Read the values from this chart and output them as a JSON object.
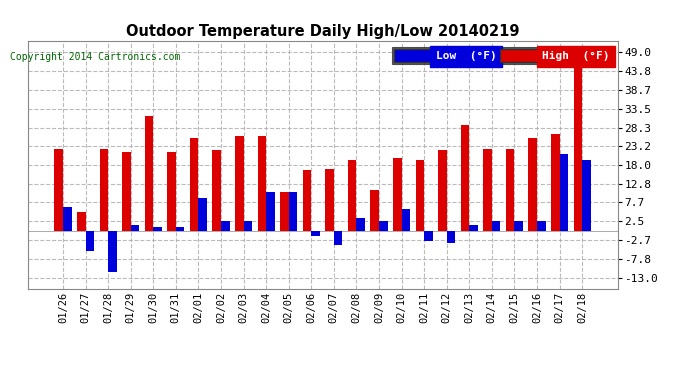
{
  "title": "Outdoor Temperature Daily High/Low 20140219",
  "copyright": "Copyright 2014 Cartronics.com",
  "legend_low": "Low  (°F)",
  "legend_high": "High  (°F)",
  "low_color": "#0000dd",
  "high_color": "#dd0000",
  "background_color": "#ffffff",
  "plot_bg_color": "#ffffff",
  "grid_color": "#aaaaaa",
  "ylim": [
    -16.0,
    52.0
  ],
  "yticks": [
    -13.0,
    -7.8,
    -2.7,
    2.5,
    7.7,
    12.8,
    18.0,
    23.2,
    28.3,
    33.5,
    38.7,
    43.8,
    49.0
  ],
  "dates": [
    "01/26",
    "01/27",
    "01/28",
    "01/29",
    "01/30",
    "01/31",
    "02/01",
    "02/02",
    "02/03",
    "02/04",
    "02/05",
    "02/06",
    "02/07",
    "02/08",
    "02/09",
    "02/10",
    "02/11",
    "02/12",
    "02/13",
    "02/14",
    "02/15",
    "02/16",
    "02/17",
    "02/18"
  ],
  "highs": [
    22.5,
    5.0,
    22.5,
    21.5,
    31.5,
    21.5,
    25.5,
    22.0,
    26.0,
    26.0,
    10.5,
    16.5,
    17.0,
    19.5,
    11.0,
    20.0,
    19.5,
    22.0,
    29.0,
    22.5,
    22.5,
    25.5,
    26.5,
    49.0
  ],
  "lows": [
    6.5,
    -5.5,
    -11.5,
    1.5,
    1.0,
    1.0,
    9.0,
    2.5,
    2.5,
    10.5,
    10.5,
    -1.5,
    -4.0,
    3.5,
    2.5,
    6.0,
    -3.0,
    -3.5,
    1.5,
    2.5,
    2.5,
    2.5,
    21.0,
    19.5
  ]
}
